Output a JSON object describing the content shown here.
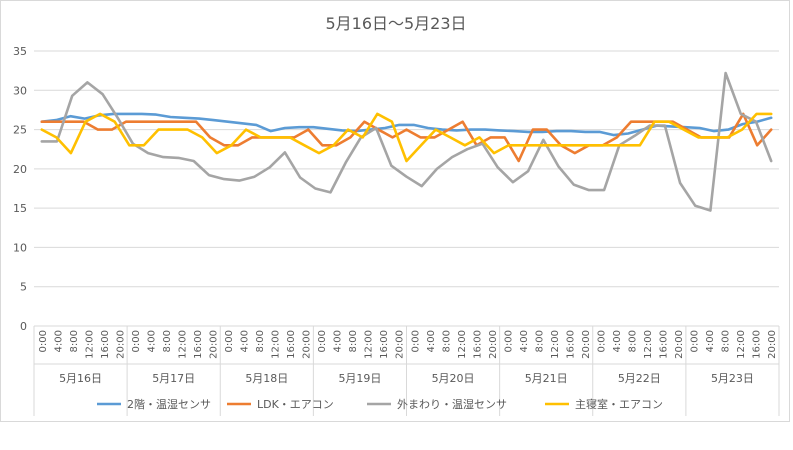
{
  "chart_data": {
    "type": "line",
    "title": "5月16日～5月23日",
    "ylim": [
      0,
      35
    ],
    "yticks": [
      0,
      5,
      10,
      15,
      20,
      25,
      30,
      35
    ],
    "grid": true,
    "legend_position": "bottom",
    "day_groups": [
      "5月16日",
      "5月17日",
      "5月18日",
      "5月19日",
      "5月20日",
      "5月21日",
      "5月22日",
      "5月23日"
    ],
    "time_labels": [
      "0:00",
      "4:00",
      "8:00",
      "12:00",
      "16:00",
      "20:00"
    ],
    "series": [
      {
        "name": "2階・温湿センサ",
        "color": "#5b9bd5",
        "values": [
          26.0,
          26.2,
          26.7,
          26.4,
          26.8,
          27.0,
          27.0,
          27.0,
          26.9,
          26.6,
          26.5,
          26.4,
          26.2,
          26.0,
          25.8,
          25.6,
          24.8,
          25.2,
          25.3,
          25.3,
          25.1,
          24.9,
          24.8,
          25.0,
          25.2,
          25.6,
          25.6,
          25.2,
          25.0,
          24.9,
          25.0,
          25.0,
          24.9,
          24.8,
          24.7,
          24.7,
          24.8,
          24.8,
          24.7,
          24.7,
          24.3,
          24.5,
          25.0,
          25.5,
          25.4,
          25.3,
          25.2,
          24.8,
          25.0,
          25.7,
          26.0,
          26.5
        ]
      },
      {
        "name": "LDK・エアコン",
        "color": "#ed7d31",
        "values": [
          26,
          26,
          26,
          26,
          25,
          25,
          26,
          26,
          26,
          26,
          26,
          26,
          24,
          23,
          23,
          24,
          24,
          24,
          24,
          25,
          23,
          23,
          24,
          26,
          25,
          24,
          25,
          24,
          24,
          25,
          26,
          23,
          24,
          24,
          21,
          25,
          25,
          23,
          22,
          23,
          23,
          24,
          26,
          26,
          26,
          26,
          25,
          24,
          24,
          24,
          27,
          23,
          25
        ]
      },
      {
        "name": "外まわり・温湿センサ",
        "color": "#a5a5a5",
        "values": [
          23.5,
          23.5,
          29.3,
          31.0,
          29.5,
          26.5,
          23.2,
          22.0,
          21.5,
          21.4,
          21.0,
          19.2,
          18.7,
          18.5,
          19.0,
          20.2,
          22.1,
          18.9,
          17.5,
          17.0,
          20.8,
          24.0,
          25.2,
          20.4,
          19.0,
          17.8,
          20.0,
          21.5,
          22.5,
          23.2,
          20.2,
          18.3,
          19.7,
          23.7,
          20.3,
          18.0,
          17.3,
          17.3,
          23.0,
          24.2,
          25.5,
          25.5,
          18.2,
          15.3,
          14.7,
          32.2,
          27.0,
          26.0,
          21.0
        ]
      },
      {
        "name": "主寝室・エアコン",
        "color": "#ffc000",
        "values": [
          25,
          24,
          22,
          26,
          27,
          26,
          23,
          23,
          25,
          25,
          25,
          24,
          22,
          23,
          25,
          24,
          24,
          24,
          23,
          22,
          23,
          25,
          24,
          27,
          26,
          21,
          23,
          25,
          24,
          23,
          24,
          22,
          23,
          23,
          23,
          23,
          23,
          23,
          23,
          23,
          23,
          23,
          26,
          26,
          25,
          24,
          24,
          24,
          25,
          27,
          27
        ]
      }
    ]
  }
}
